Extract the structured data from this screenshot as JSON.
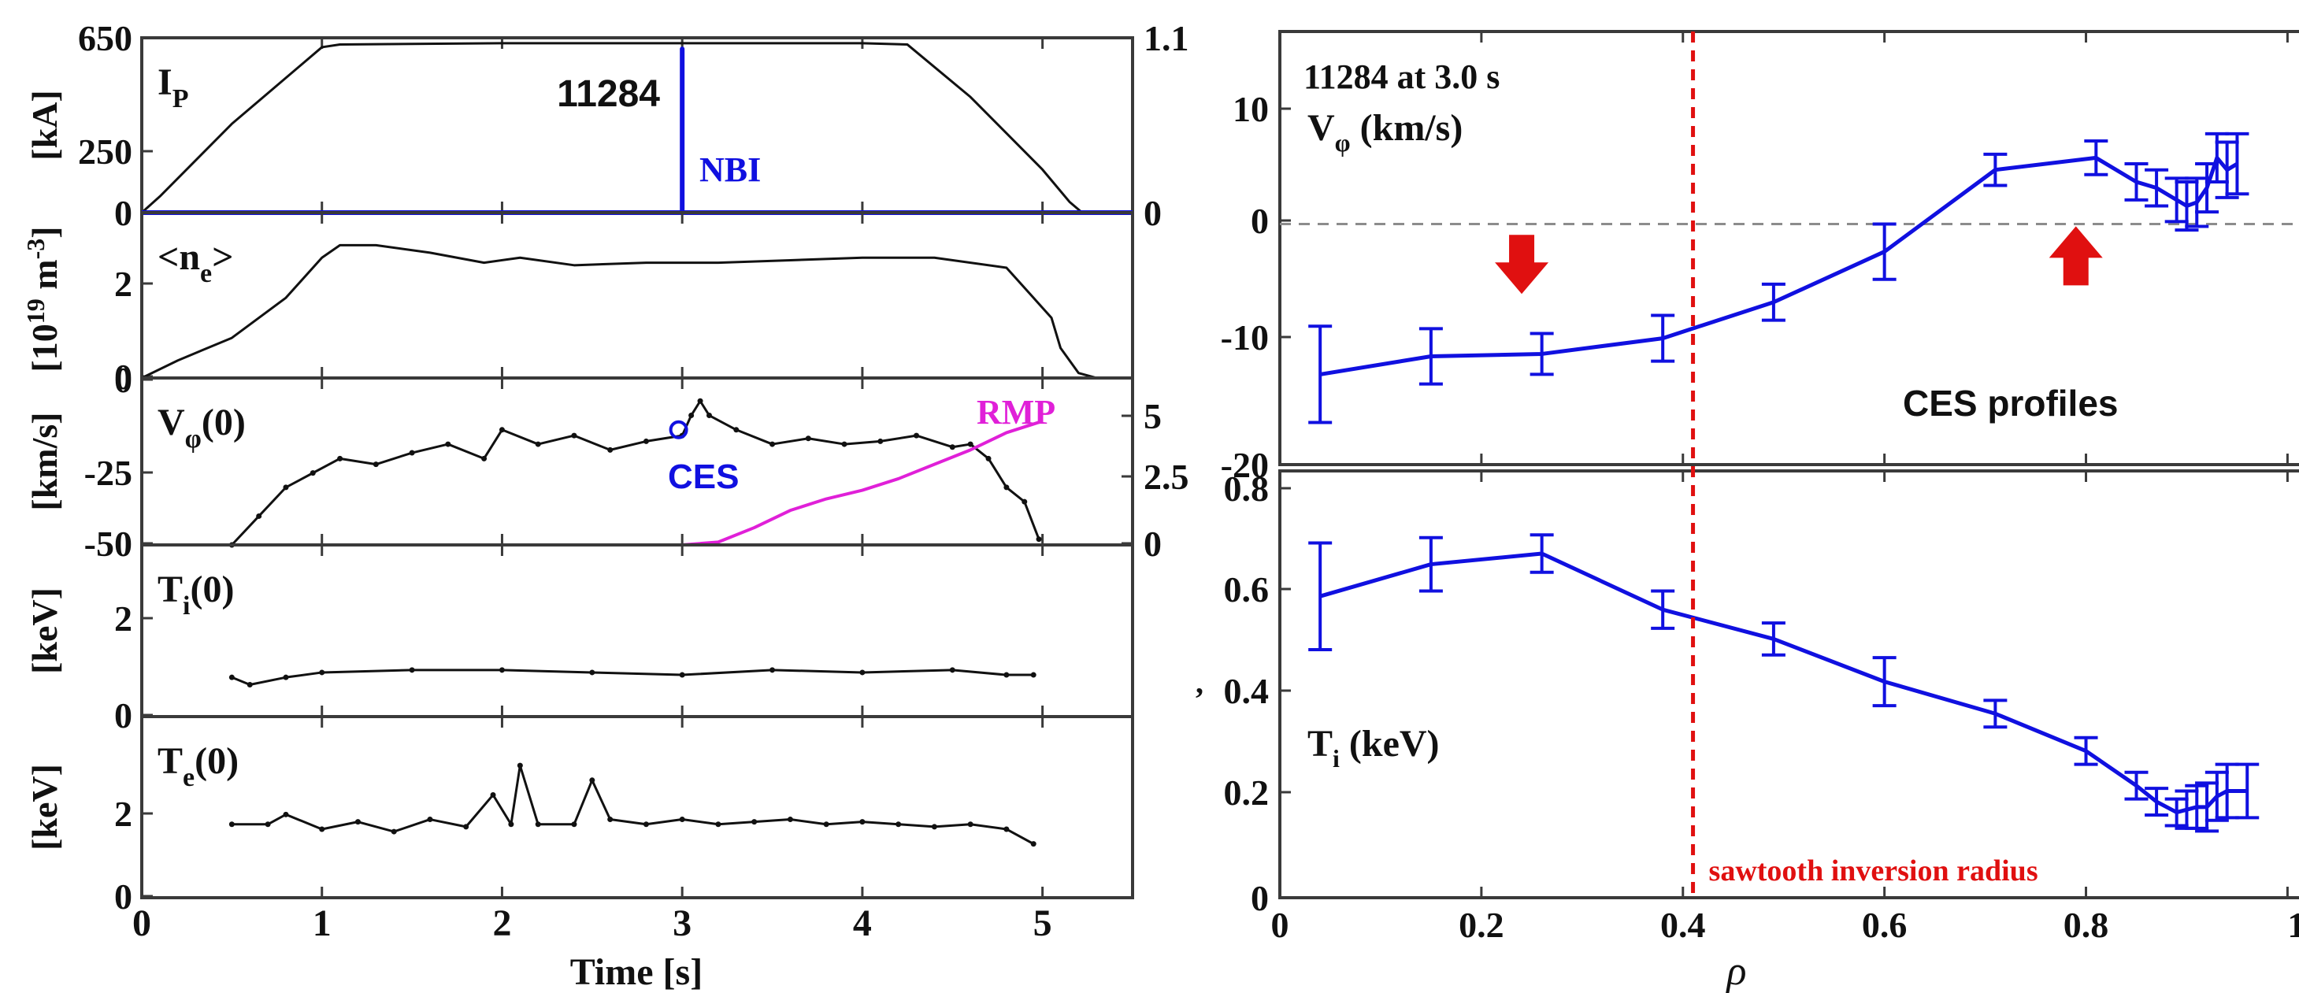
{
  "colors": {
    "black": "#111111",
    "blue": "#1010e0",
    "magenta": "#e020d8",
    "red": "#e01010",
    "frame": "#3a3a3a",
    "dash": "#8c8c8c"
  },
  "left": {
    "x_ticks": [
      "0",
      "1",
      "2",
      "3",
      "4",
      "5"
    ],
    "xlabel": "Time [s]",
    "panels": [
      {
        "label_main": "I",
        "label_sub": "P",
        "unit": "[kA]",
        "shot": "11284",
        "nbi": "NBI",
        "left_ticks": [
          "650",
          "250",
          "0"
        ],
        "right_ticks": [
          "1.1",
          "0"
        ],
        "chart_data": {
          "type": "line",
          "ylim": [
            0,
            650
          ],
          "y2lim": [
            0,
            1.1
          ],
          "xlim": [
            0,
            5.5
          ],
          "series": [
            {
              "name": "",
              "color": "black",
              "axis": "left",
              "x": [
                0,
                0.1,
                0.5,
                1.0,
                1.1,
                2.0,
                3.0,
                4.0,
                4.25,
                4.6,
                5.0,
                5.15,
                5.22
              ],
              "y": [
                0,
                60,
                330,
                615,
                625,
                630,
                630,
                630,
                625,
                430,
                160,
                40,
                0
              ]
            },
            {
              "name": "",
              "color": "blue",
              "axis": "right",
              "x": [
                0,
                3.0,
                3.0,
                3.0,
                5.5
              ],
              "y": [
                0,
                0,
                1.03,
                0,
                0
              ]
            }
          ]
        }
      },
      {
        "label_main": "<n",
        "label_sub": "e",
        "label_end": ">",
        "unit_pre": "[10",
        "unit_sup1": "19",
        "unit_mid": " m",
        "unit_sup2": "-3",
        "unit_post": "]",
        "left_ticks": [
          "2",
          "0"
        ],
        "chart_data": {
          "type": "line",
          "ylim": [
            0,
            3.3
          ],
          "xlim": [
            0,
            5.5
          ],
          "series": [
            {
              "name": "",
              "color": "black",
              "x": [
                0,
                0.2,
                0.5,
                0.8,
                1.0,
                1.1,
                1.3,
                1.6,
                1.9,
                2.1,
                2.4,
                2.8,
                3.2,
                3.6,
                4.0,
                4.4,
                4.8,
                4.95,
                5.05,
                5.1,
                5.2,
                5.3
              ],
              "y": [
                0,
                0.35,
                0.8,
                1.6,
                2.4,
                2.65,
                2.65,
                2.5,
                2.3,
                2.4,
                2.25,
                2.3,
                2.3,
                2.35,
                2.4,
                2.4,
                2.2,
                1.6,
                1.2,
                0.6,
                0.1,
                0
              ]
            }
          ]
        }
      },
      {
        "label_main": "V",
        "label_sub": "φ",
        "label_end": "(0)",
        "unit": "[km/s]",
        "ces": "CES",
        "rmp": "RMP",
        "left_ticks": [
          "0",
          "-25",
          "-50"
        ],
        "right_ticks": [
          "5",
          "2.5",
          "0"
        ],
        "chart_data": {
          "type": "line",
          "ylim": [
            -50,
            8
          ],
          "y2lim": [
            0,
            5.8
          ],
          "xlim": [
            0,
            5.5
          ],
          "series": [
            {
              "name": "",
              "color": "black",
              "axis": "left",
              "markers": true,
              "x": [
                0.5,
                0.65,
                0.8,
                0.95,
                1.1,
                1.3,
                1.5,
                1.7,
                1.9,
                2.0,
                2.2,
                2.4,
                2.6,
                2.8,
                3.0,
                3.05,
                3.1,
                3.15,
                3.3,
                3.5,
                3.7,
                3.9,
                4.1,
                4.3,
                4.5,
                4.6,
                4.7,
                4.8,
                4.9,
                4.98
              ],
              "y": [
                -50,
                -40,
                -30,
                -25,
                -20,
                -22,
                -18,
                -15,
                -20,
                -10,
                -15,
                -12,
                -17,
                -14,
                -12,
                -5,
                0,
                -5,
                -10,
                -15,
                -13,
                -15,
                -14,
                -12,
                -16,
                -15,
                -20,
                -30,
                -35,
                -48
              ]
            },
            {
              "name": "",
              "color": "magenta",
              "axis": "right",
              "x": [
                0.5,
                1.0,
                2.0,
                3.0,
                3.2,
                3.4,
                3.6,
                3.8,
                4.0,
                4.2,
                4.4,
                4.6,
                4.8,
                5.0
              ],
              "y": [
                0,
                0,
                0,
                0,
                0.1,
                0.6,
                1.2,
                1.6,
                1.9,
                2.3,
                2.8,
                3.3,
                3.9,
                4.3
              ]
            }
          ],
          "ces_point": {
            "x": 2.98,
            "y": -10
          }
        }
      },
      {
        "label_main": "T",
        "label_sub": "i",
        "label_end": "(0)",
        "unit": "[keV]",
        "left_ticks": [
          "2",
          "0"
        ],
        "chart_data": {
          "type": "line",
          "ylim": [
            0,
            3.5
          ],
          "xlim": [
            0,
            5.5
          ],
          "series": [
            {
              "name": "",
              "color": "black",
              "markers": true,
              "x": [
                0.5,
                0.6,
                0.8,
                1.0,
                1.5,
                2.0,
                2.5,
                3.0,
                3.5,
                4.0,
                4.5,
                4.8,
                4.95
              ],
              "y": [
                0.8,
                0.65,
                0.8,
                0.9,
                0.95,
                0.95,
                0.9,
                0.85,
                0.95,
                0.9,
                0.95,
                0.85,
                0.85
              ]
            }
          ]
        }
      },
      {
        "label_main": "T",
        "label_sub": "e",
        "label_end": "(0)",
        "unit": "[keV]",
        "left_ticks": [
          "2",
          "0"
        ],
        "chart_data": {
          "type": "line",
          "ylim": [
            0,
            3.7
          ],
          "xlim": [
            0,
            5.5
          ],
          "series": [
            {
              "name": "",
              "color": "black",
              "markers": true,
              "x": [
                0.5,
                0.7,
                0.8,
                1.0,
                1.2,
                1.4,
                1.6,
                1.8,
                1.95,
                2.05,
                2.1,
                2.2,
                2.4,
                2.5,
                2.6,
                2.8,
                3.0,
                3.2,
                3.4,
                3.6,
                3.8,
                4.0,
                4.2,
                4.4,
                4.6,
                4.8,
                4.95
              ],
              "y": [
                1.5,
                1.5,
                1.7,
                1.4,
                1.55,
                1.35,
                1.6,
                1.45,
                2.1,
                1.5,
                2.7,
                1.5,
                1.5,
                2.4,
                1.6,
                1.5,
                1.6,
                1.5,
                1.55,
                1.6,
                1.5,
                1.55,
                1.5,
                1.45,
                1.5,
                1.4,
                1.1
              ]
            }
          ]
        }
      }
    ]
  },
  "right": {
    "annotation": "11284 at 3.0 s",
    "ces_profiles": "CES profiles",
    "sawtooth": "sawtooth inversion radius",
    "x_ticks": [
      "0",
      "0.2",
      "0.4",
      "0.6",
      "0.8",
      "1"
    ],
    "xlabel": "ρ",
    "top": {
      "label_main": "V",
      "label_sub": "φ",
      "label_end": " (km/s)",
      "left_ticks": [
        "10",
        "0",
        "-10",
        "-20"
      ],
      "chart_data": {
        "type": "line",
        "ylim": [
          -20,
          16
        ],
        "xlim": [
          0,
          1.02
        ],
        "series": [
          {
            "name": "",
            "color": "blue",
            "errorbars": true,
            "x": [
              0.04,
              0.15,
              0.26,
              0.38,
              0.49,
              0.6,
              0.71,
              0.81,
              0.85,
              0.87,
              0.89,
              0.9,
              0.91,
              0.92,
              0.93,
              0.94,
              0.95
            ],
            "y": [
              -12.5,
              -11.0,
              -10.8,
              -9.5,
              -6.5,
              -2.3,
              4.5,
              5.5,
              3.5,
              3.0,
              2.0,
              1.5,
              1.8,
              3.0,
              5.5,
              4.5,
              5.0
            ],
            "err": [
              4.0,
              2.3,
              1.7,
              1.9,
              1.5,
              2.3,
              1.3,
              1.4,
              1.5,
              1.5,
              1.8,
              2.0,
              2.0,
              2.0,
              2.0,
              2.3,
              2.5
            ]
          }
        ],
        "zero_line": 0,
        "arrows": [
          {
            "x": 0.24,
            "y": -4.5,
            "dir": "down"
          },
          {
            "x": 0.79,
            "y": -1.5,
            "dir": "up"
          }
        ]
      }
    },
    "bottom": {
      "label_main": "T",
      "label_sub": "i",
      "label_end": " (keV)",
      "left_ticks": [
        "0.8",
        "0.6",
        "0.4",
        "0.2",
        "0"
      ],
      "side_mark": ",",
      "chart_data": {
        "type": "line",
        "ylim": [
          0,
          0.8
        ],
        "xlim": [
          0,
          1.02
        ],
        "series": [
          {
            "name": "",
            "color": "blue",
            "errorbars": true,
            "x": [
              0.04,
              0.15,
              0.26,
              0.38,
              0.49,
              0.6,
              0.71,
              0.8,
              0.85,
              0.87,
              0.89,
              0.9,
              0.91,
              0.92,
              0.93,
              0.94,
              0.96
            ],
            "y": [
              0.565,
              0.625,
              0.645,
              0.54,
              0.485,
              0.405,
              0.345,
              0.275,
              0.21,
              0.18,
              0.16,
              0.165,
              0.17,
              0.17,
              0.19,
              0.2,
              0.2
            ],
            "err": [
              0.1,
              0.05,
              0.035,
              0.035,
              0.03,
              0.045,
              0.025,
              0.025,
              0.025,
              0.025,
              0.025,
              0.035,
              0.04,
              0.045,
              0.045,
              0.05,
              0.05
            ]
          }
        ]
      }
    },
    "sawtooth_x": 0.41
  }
}
